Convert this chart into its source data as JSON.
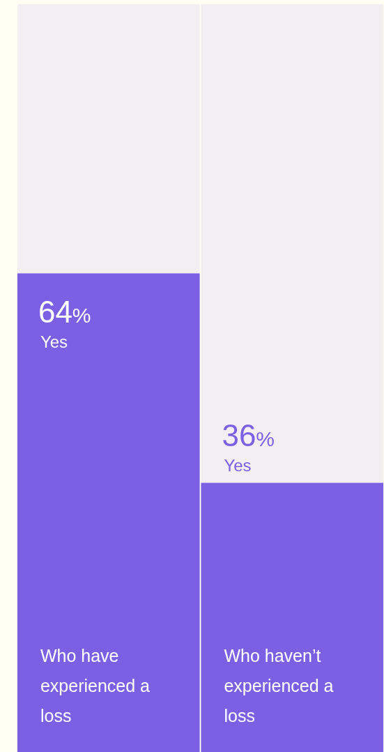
{
  "chart_data": {
    "type": "bar",
    "stacked": true,
    "categories": [
      "Who have experienced a loss",
      "Who haven’t experienced a loss"
    ],
    "series": [
      {
        "name": "Yes",
        "color": "#7b60e3",
        "values": [
          64,
          36
        ],
        "value_labels": [
          "64%",
          "36%"
        ]
      },
      {
        "color": "#f2eef1",
        "values": [
          36,
          64
        ]
      }
    ],
    "ylim": [
      0,
      100
    ],
    "legend": false
  }
}
